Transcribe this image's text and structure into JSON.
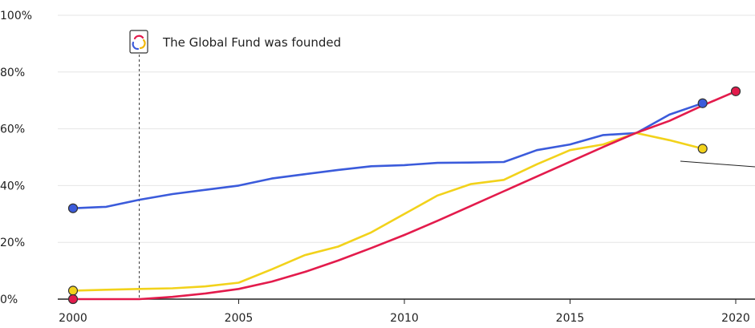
{
  "chart_data": {
    "type": "line",
    "ylim": [
      0,
      100
    ],
    "xlim": [
      2000,
      2020
    ],
    "x_ticks": [
      2000,
      2005,
      2010,
      2015,
      2020
    ],
    "x_tick_labels": [
      "2000",
      "2005",
      "2010",
      "2015",
      "2020"
    ],
    "y_ticks": [
      0,
      20,
      40,
      60,
      80,
      100
    ],
    "y_tick_labels": [
      "0%",
      "20%",
      "40%",
      "60%",
      "80%",
      "100%"
    ],
    "grid": true,
    "annotation": {
      "text": "The Global Fund was founded",
      "x": 2002,
      "icon": "global-fund-logo-icon"
    },
    "series": [
      {
        "color": "#3b5bdb",
        "x": [
          2000,
          2001,
          2002,
          2003,
          2004,
          2005,
          2006,
          2007,
          2008,
          2009,
          2010,
          2011,
          2012,
          2013,
          2014,
          2015,
          2016,
          2017,
          2018,
          2019
        ],
        "values": [
          32,
          32.5,
          35,
          37,
          38.5,
          40,
          42.5,
          44,
          45.5,
          46.8,
          47.2,
          48,
          48.1,
          48.3,
          52.5,
          54.5,
          57.8,
          58.5,
          65,
          69
        ]
      },
      {
        "color": "#f2d21b",
        "x": [
          2000,
          2001,
          2002,
          2003,
          2004,
          2005,
          2006,
          2007,
          2008,
          2009,
          2010,
          2011,
          2012,
          2013,
          2014,
          2015,
          2016,
          2017,
          2018,
          2019
        ],
        "values": [
          3,
          3.3,
          3.6,
          3.8,
          4.5,
          5.8,
          10.5,
          15.5,
          18.5,
          23.5,
          30,
          36.5,
          40.5,
          42,
          47.5,
          52.5,
          54.5,
          58.5,
          56,
          53
        ]
      },
      {
        "color": "#e31b4c",
        "x": [
          2000,
          2001,
          2002,
          2003,
          2004,
          2005,
          2006,
          2007,
          2008,
          2009,
          2010,
          2011,
          2012,
          2013,
          2014,
          2015,
          2016,
          2017,
          2018,
          2019,
          2020
        ],
        "values": [
          0,
          0,
          0,
          0.8,
          2,
          3.6,
          6.2,
          9.6,
          13.6,
          18,
          22.6,
          27.6,
          32.8,
          38,
          43.2,
          48.4,
          53.6,
          58.6,
          62.8,
          68.2,
          73.2
        ]
      }
    ]
  }
}
